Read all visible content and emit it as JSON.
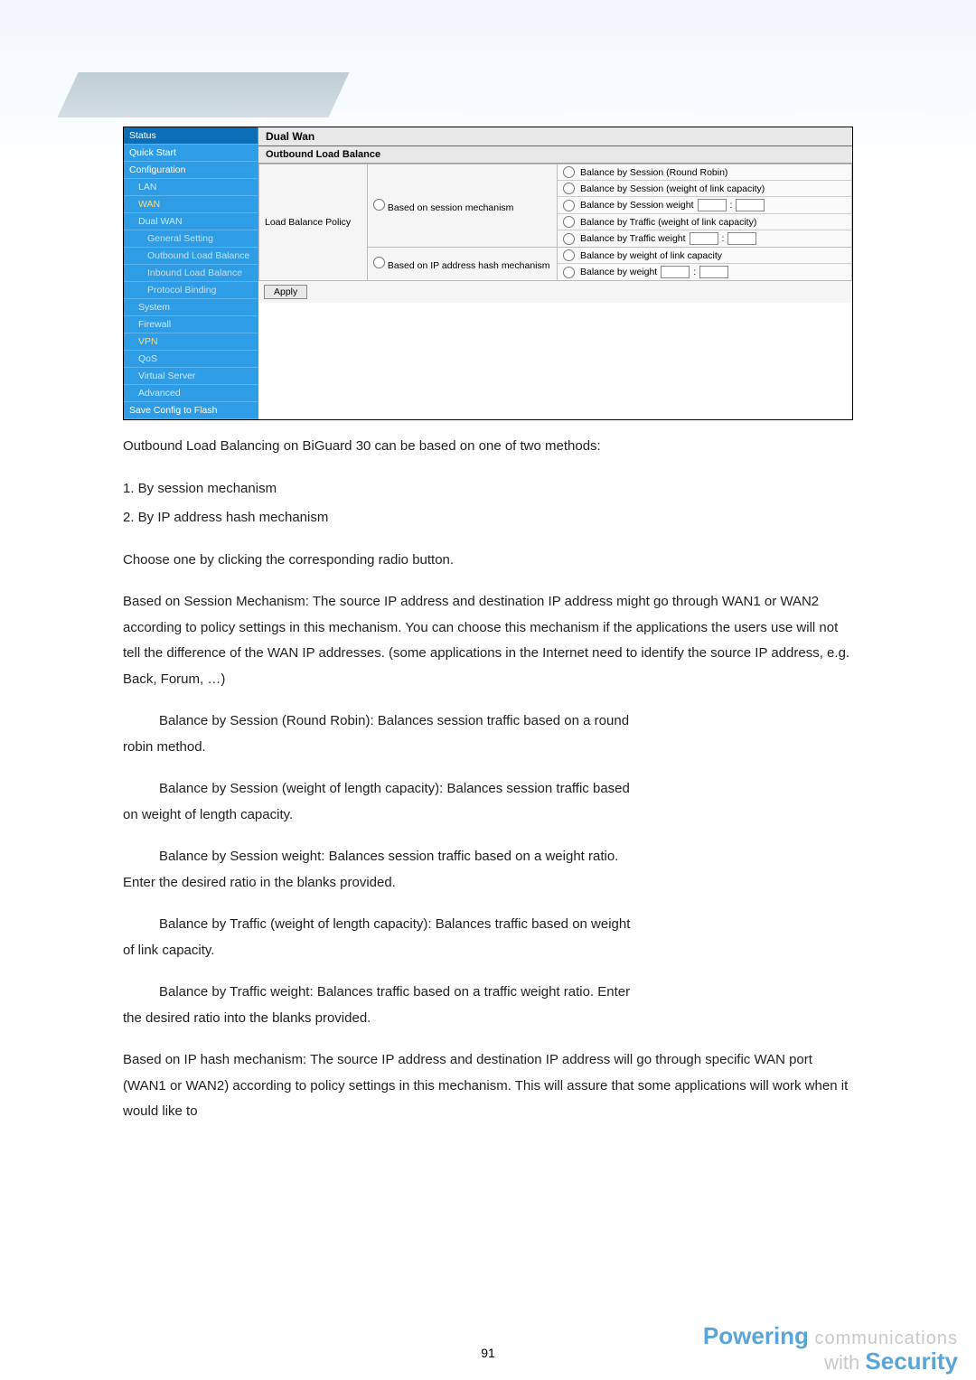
{
  "sidebar": {
    "items": [
      {
        "label": "Status",
        "cls": "active"
      },
      {
        "label": "Quick Start",
        "cls": ""
      },
      {
        "label": "Configuration",
        "cls": ""
      },
      {
        "label": "LAN",
        "cls": "indent1"
      },
      {
        "label": "WAN",
        "cls": "indent1 special"
      },
      {
        "label": "Dual WAN",
        "cls": "indent1"
      },
      {
        "label": "General Setting",
        "cls": "indent2"
      },
      {
        "label": "Outbound Load Balance",
        "cls": "indent2"
      },
      {
        "label": "Inbound Load Balance",
        "cls": "indent2"
      },
      {
        "label": "Protocol Binding",
        "cls": "indent2"
      },
      {
        "label": "System",
        "cls": "indent1"
      },
      {
        "label": "Firewall",
        "cls": "indent1"
      },
      {
        "label": "VPN",
        "cls": "indent1 special"
      },
      {
        "label": "QoS",
        "cls": "indent1"
      },
      {
        "label": "Virtual Server",
        "cls": "indent1"
      },
      {
        "label": "Advanced",
        "cls": "indent1"
      },
      {
        "label": "Save Config to Flash",
        "cls": ""
      }
    ]
  },
  "panel": {
    "title": "Dual Wan",
    "section": "Outbound Load Balance",
    "policy_label": "Load Balance Policy",
    "mech1": "Based on session mechanism",
    "mech2": "Based on IP address hash mechanism",
    "opts_session": [
      "Balance by Session (Round Robin)",
      "Balance by Session (weight of link capacity)",
      "Balance by Session weight",
      "Balance by Traffic (weight of link capacity)",
      "Balance by Traffic weight"
    ],
    "opts_ip": [
      "Balance by weight of link capacity",
      "Balance by weight"
    ],
    "apply": "Apply"
  },
  "text": {
    "intro": "Outbound Load Balancing on BiGuard 30 can be based on one of two methods:",
    "m1": "1. By session mechanism",
    "m2": "2. By IP address hash mechanism",
    "choose": "Choose one by clicking the corresponding radio button.",
    "session_desc": "Based on Session Mechanism: The source IP address and destination IP address might go through WAN1 or WAN2 according to policy settings in this mechanism. You can choose this mechanism if the applications the users use will not tell the difference of the WAN IP addresses. (some applications in the Internet need to identify the source IP address, e.g. Back, Forum, …)",
    "s1a": "Balance by Session (Round Robin): Balances session traffic based on a round",
    "s1b": "robin method.",
    "s2a": "Balance by Session (weight of length capacity): Balances session traffic based",
    "s2b": "on weight of length capacity.",
    "s3a": "Balance by Session weight: Balances session traffic based on a weight ratio.",
    "s3b": "Enter the desired ratio in the blanks provided.",
    "s4a": "Balance by Traffic (weight of length capacity): Balances traffic based on weight",
    "s4b": "of link capacity.",
    "s5a": "Balance by Traffic weight: Balances traffic based on a traffic weight ratio. Enter",
    "s5b": "the desired ratio into the blanks provided.",
    "ip_desc": "Based on IP hash mechanism: The source IP address and destination IP address will go through specific WAN port (WAN1 or WAN2) according to policy settings in this mechanism. This will assure that some applications will work when it would like to"
  },
  "page_num": "91",
  "footer": {
    "powering": "Powering",
    "comm": " communications",
    "with": "with ",
    "security": "Security"
  }
}
